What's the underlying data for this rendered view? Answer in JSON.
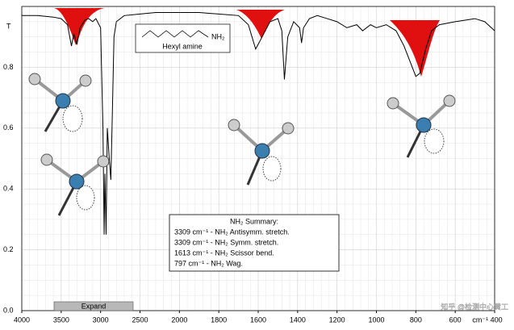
{
  "chart_data": {
    "type": "line",
    "y_label": "T",
    "color": "#000000",
    "grid": true,
    "xlim": [
      4000,
      400
    ],
    "ylim": [
      0,
      1
    ],
    "xticks": [
      4000,
      3500,
      3000,
      2500,
      2000,
      1800,
      1600,
      1400,
      1200,
      1000,
      800,
      600,
      {
        "value": 400,
        "label": "cm⁻¹ 400"
      }
    ],
    "yticks": [
      {
        "value": 0,
        "label": "0.0"
      },
      0.2,
      0.4,
      0.6,
      0.8
    ],
    "x": [
      4000,
      3800,
      3600,
      3500,
      3420,
      3370,
      3340,
      3300,
      3260,
      3200,
      3150,
      3100,
      3060,
      3000,
      2970,
      2955,
      2945,
      2930,
      2915,
      2890,
      2870,
      2855,
      2830,
      2800,
      2700,
      2500,
      2300,
      2000,
      1900,
      1800,
      1700,
      1650,
      1613,
      1580,
      1540,
      1500,
      1480,
      1467,
      1450,
      1420,
      1390,
      1380,
      1370,
      1340,
      1300,
      1250,
      1200,
      1150,
      1100,
      1070,
      1030,
      1000,
      950,
      900,
      860,
      830,
      800,
      780,
      750,
      720,
      680,
      600,
      500,
      450,
      400
    ],
    "values": [
      0.97,
      0.97,
      0.965,
      0.96,
      0.94,
      0.87,
      0.91,
      0.875,
      0.93,
      0.955,
      0.96,
      0.95,
      0.96,
      0.93,
      0.6,
      0.25,
      0.45,
      0.25,
      0.6,
      0.5,
      0.43,
      0.6,
      0.9,
      0.95,
      0.97,
      0.975,
      0.98,
      0.98,
      0.98,
      0.975,
      0.97,
      0.94,
      0.86,
      0.9,
      0.95,
      0.96,
      0.92,
      0.76,
      0.9,
      0.95,
      0.93,
      0.88,
      0.93,
      0.96,
      0.97,
      0.96,
      0.95,
      0.93,
      0.94,
      0.92,
      0.94,
      0.93,
      0.94,
      0.92,
      0.87,
      0.82,
      0.77,
      0.78,
      0.86,
      0.92,
      0.94,
      0.95,
      0.96,
      0.95,
      0.92
    ],
    "structure_name": "Hexyl amine",
    "structure_group": "NH₂",
    "annotations": [
      "NH₂ Summary:",
      "3309 cm⁻¹ - NH₂ Antisymm. stretch.",
      "3309 cm⁻¹ - NH₂ Symm. stretch.",
      "1613 cm⁻¹ - NH₂ Scissor bend.",
      "797 cm⁻¹ - NH₂ Wag."
    ]
  },
  "ui": {
    "button": "Expand",
    "watermark": "知乎 @检测中心黄工"
  }
}
